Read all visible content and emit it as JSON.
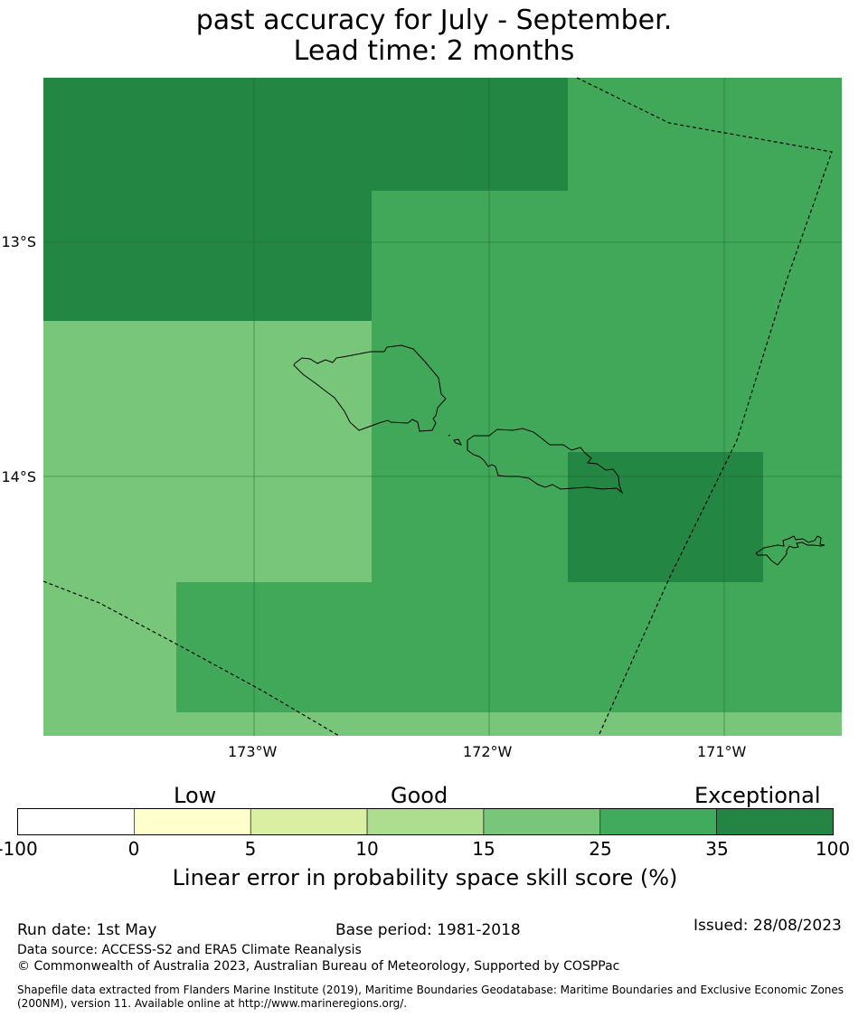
{
  "title": {
    "line1": "past accuracy for July - September.",
    "line2": "Lead time: 2 months"
  },
  "map": {
    "lat_ticks": [
      "13°S",
      "14°S"
    ],
    "lon_ticks": [
      "173°W",
      "172°W",
      "171°W"
    ],
    "colors": {
      "exceptional": "#248643",
      "good_high": "#41a85a",
      "good_mid": "#78c679"
    }
  },
  "legend": {
    "categories": [
      "Low",
      "Good",
      "Exceptional"
    ],
    "tick_labels": [
      "-100",
      "0",
      "5",
      "10",
      "15",
      "25",
      "35",
      "100"
    ],
    "bin_colors": [
      "#ffffff",
      "#ffffcc",
      "#d9f0a3",
      "#addd8e",
      "#78c679",
      "#41ab5d",
      "#238443"
    ],
    "label": "Linear error in probability space skill score (%)"
  },
  "footer": {
    "run_date": "Run date: 1st May",
    "base_period": "Base period: 1981-2018",
    "issued": "Issued: 28/08/2023",
    "data_source": "Data source: ACCESS-S2 and ERA5 Climate Reanalysis",
    "copyright": "© Commonwealth of Australia 2023, Australian Bureau of Meteorology, Supported by COSPPac",
    "shapefile_line1": "Shapefile data extracted from Flanders Marine Institute (2019), Maritime Boundaries Geodatabase: Maritime Boundaries and Exclusive Economic Zones",
    "shapefile_line2": "(200NM), version 11. Available online at http://www.marineregions.org/."
  }
}
